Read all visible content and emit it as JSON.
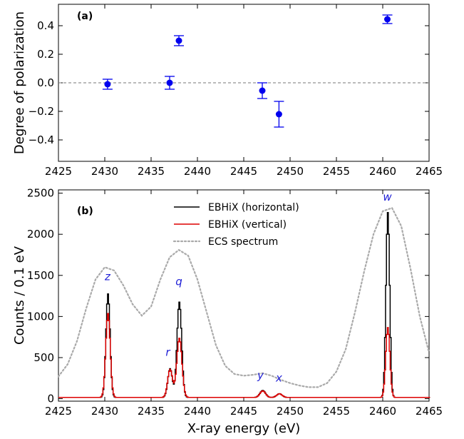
{
  "chart_data": [
    {
      "type": "scatter",
      "panel_label": "(a)",
      "xlabel": "",
      "ylabel": "Degree of polarization",
      "xlim": [
        2425,
        2465
      ],
      "ylim": [
        -0.55,
        0.55
      ],
      "xticks": [
        2425,
        2430,
        2435,
        2440,
        2445,
        2450,
        2455,
        2460,
        2465
      ],
      "yticks": [
        -0.4,
        -0.2,
        0.0,
        0.2,
        0.4
      ],
      "ytick_labels": [
        "−0.4",
        "−0.2",
        "0.0",
        "0.2",
        "0.4"
      ],
      "reference_line_y": 0,
      "marker_color": "#0000ee",
      "points": [
        {
          "x": 2430.3,
          "y": -0.01,
          "err": 0.035
        },
        {
          "x": 2437.0,
          "y": 0.0,
          "err": 0.045
        },
        {
          "x": 2438.0,
          "y": 0.295,
          "err": 0.035
        },
        {
          "x": 2447.0,
          "y": -0.055,
          "err": 0.055
        },
        {
          "x": 2448.8,
          "y": -0.22,
          "err": 0.09
        },
        {
          "x": 2460.5,
          "y": 0.445,
          "err": 0.03
        }
      ]
    },
    {
      "type": "line",
      "panel_label": "(b)",
      "xlabel": "X-ray energy (eV)",
      "ylabel": "Counts / 0.1 eV",
      "xlim": [
        2425,
        2465
      ],
      "ylim": [
        -30,
        2540
      ],
      "xticks": [
        2425,
        2430,
        2435,
        2440,
        2445,
        2450,
        2455,
        2460,
        2465
      ],
      "yticks": [
        0,
        500,
        1000,
        1500,
        2000,
        2500
      ],
      "legend_position": "top-center",
      "series": [
        {
          "name": "EBHiX (horizontal)",
          "color": "#000000",
          "style": "solid",
          "baseline": 15,
          "peaks": [
            {
              "center": 2430.3,
              "height": 1260,
              "width": 0.22
            },
            {
              "center": 2437.0,
              "height": 350,
              "width": 0.25
            },
            {
              "center": 2438.0,
              "height": 1160,
              "width": 0.25
            },
            {
              "center": 2447.0,
              "height": 85,
              "width": 0.3
            },
            {
              "center": 2448.8,
              "height": 45,
              "width": 0.3
            },
            {
              "center": 2460.5,
              "height": 2250,
              "width": 0.2
            }
          ]
        },
        {
          "name": "EBHiX (vertical)",
          "color": "#dd0000",
          "style": "solid",
          "baseline": 15,
          "peaks": [
            {
              "center": 2430.3,
              "height": 1020,
              "width": 0.24
            },
            {
              "center": 2437.0,
              "height": 340,
              "width": 0.26
            },
            {
              "center": 2438.0,
              "height": 720,
              "width": 0.28
            },
            {
              "center": 2447.0,
              "height": 80,
              "width": 0.3
            },
            {
              "center": 2448.8,
              "height": 45,
              "width": 0.3
            },
            {
              "center": 2460.5,
              "height": 850,
              "width": 0.22
            }
          ]
        },
        {
          "name": "ECS spectrum",
          "color": "#aaaaaa",
          "style": "dotted",
          "points": [
            [
              2425,
              270
            ],
            [
              2426,
              420
            ],
            [
              2427,
              700
            ],
            [
              2428,
              1100
            ],
            [
              2429,
              1450
            ],
            [
              2430,
              1600
            ],
            [
              2431,
              1560
            ],
            [
              2432,
              1380
            ],
            [
              2433,
              1150
            ],
            [
              2434,
              1010
            ],
            [
              2435,
              1120
            ],
            [
              2436,
              1450
            ],
            [
              2437,
              1720
            ],
            [
              2438,
              1810
            ],
            [
              2439,
              1740
            ],
            [
              2440,
              1450
            ],
            [
              2441,
              1050
            ],
            [
              2442,
              650
            ],
            [
              2443,
              400
            ],
            [
              2444,
              300
            ],
            [
              2445,
              280
            ],
            [
              2446,
              290
            ],
            [
              2447,
              310
            ],
            [
              2448,
              280
            ],
            [
              2449,
              230
            ],
            [
              2450,
              190
            ],
            [
              2451,
              160
            ],
            [
              2452,
              140
            ],
            [
              2453,
              140
            ],
            [
              2454,
              190
            ],
            [
              2455,
              330
            ],
            [
              2456,
              600
            ],
            [
              2457,
              1050
            ],
            [
              2458,
              1550
            ],
            [
              2459,
              2000
            ],
            [
              2460,
              2280
            ],
            [
              2461,
              2320
            ],
            [
              2462,
              2100
            ],
            [
              2463,
              1580
            ],
            [
              2464,
              1000
            ],
            [
              2465,
              560
            ]
          ]
        }
      ],
      "peak_labels": [
        {
          "text": "z",
          "x": 2430.3,
          "y": 1440
        },
        {
          "text": "r",
          "x": 2436.8,
          "y": 520
        },
        {
          "text": "q",
          "x": 2438.0,
          "y": 1380
        },
        {
          "text": "y",
          "x": 2446.8,
          "y": 240
        },
        {
          "text": "x",
          "x": 2448.8,
          "y": 210
        },
        {
          "text": "w",
          "x": 2460.5,
          "y": 2410
        }
      ]
    }
  ]
}
